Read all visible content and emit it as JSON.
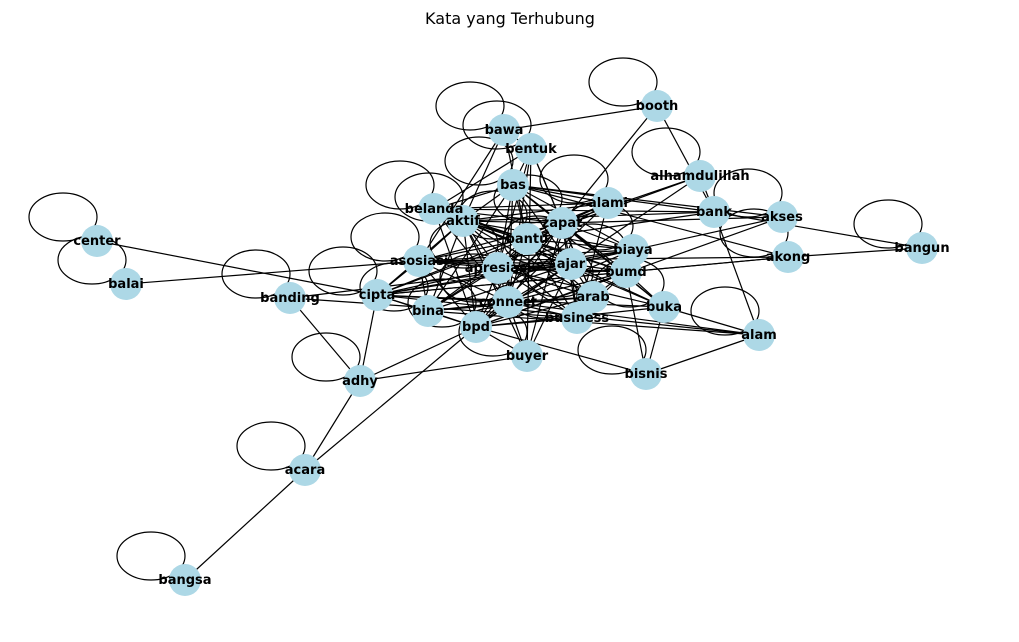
{
  "title": "Kata yang Terhubung",
  "colors": {
    "node": "#add8e6",
    "edge": "#000000",
    "background": "#ffffff",
    "text": "#000000"
  },
  "nodes": [
    "booth",
    "bawa",
    "bentuk",
    "alhamdulillah",
    "bas",
    "alami",
    "belanda",
    "aktif",
    "zapat",
    "bank",
    "akses",
    "bangun",
    "center",
    "balai",
    "bantu",
    "biaya",
    "asosiasi",
    "apresiasi",
    "ajar",
    "akong",
    "bumd",
    "banding",
    "cipta",
    "bina",
    "connect",
    "arab",
    "buka",
    "bpd",
    "business",
    "alam",
    "buyer",
    "bisnis",
    "adhy",
    "acara",
    "bangsa"
  ],
  "self_loops": [
    "booth",
    "bawa",
    "bentuk",
    "alhamdulillah",
    "bas",
    "alami",
    "belanda",
    "aktif",
    "zapat",
    "akses",
    "bangun",
    "center",
    "balai",
    "bantu",
    "biaya",
    "asosiasi",
    "apresiasi",
    "ajar",
    "akong",
    "bumd",
    "banding",
    "cipta",
    "bina",
    "connect",
    "arab",
    "buka",
    "bpd",
    "business",
    "alam",
    "buyer",
    "bisnis",
    "adhy",
    "acara",
    "bangsa"
  ],
  "edges": [
    [
      "bawa",
      "booth"
    ],
    [
      "booth",
      "bank"
    ],
    [
      "booth",
      "zapat"
    ],
    [
      "center",
      "cipta"
    ],
    [
      "balai",
      "asosiasi"
    ],
    [
      "bangun",
      "bank"
    ],
    [
      "bangun",
      "akong"
    ],
    [
      "acara",
      "adhy"
    ],
    [
      "acara",
      "bangsa"
    ],
    [
      "acara",
      "bpd"
    ],
    [
      "banding",
      "adhy"
    ],
    [
      "banding",
      "ajar"
    ],
    [
      "banding",
      "business"
    ],
    [
      "adhy",
      "cipta"
    ],
    [
      "adhy",
      "buyer"
    ],
    [
      "adhy",
      "bpd"
    ],
    [
      "bisnis",
      "alam"
    ],
    [
      "bisnis",
      "bpd"
    ],
    [
      "bisnis",
      "bumd"
    ],
    [
      "bisnis",
      "buka"
    ],
    [
      "alam",
      "bank"
    ],
    [
      "alam",
      "connect"
    ],
    [
      "alam",
      "cipta"
    ],
    [
      "alam",
      "buka"
    ],
    [
      "alam",
      "bina"
    ],
    [
      "akong",
      "cipta"
    ],
    [
      "akong",
      "asosiasi"
    ],
    [
      "akong",
      "bas"
    ],
    [
      "akong",
      "bumd"
    ],
    [
      "akses",
      "bas"
    ],
    [
      "akses",
      "bpd"
    ],
    [
      "akses",
      "biaya"
    ],
    [
      "akses",
      "zapat"
    ],
    [
      "alhamdulillah",
      "bpd"
    ],
    [
      "alhamdulillah",
      "zapat"
    ],
    [
      "alhamdulillah",
      "bantu"
    ],
    [
      "alhamdulillah",
      "bank"
    ],
    [
      "bank",
      "aktif"
    ],
    [
      "bank",
      "belanda"
    ],
    [
      "bank",
      "bantu"
    ],
    [
      "bank",
      "bas"
    ],
    [
      "buka",
      "aktif"
    ],
    [
      "buka",
      "bas"
    ],
    [
      "buka",
      "ajar"
    ],
    [
      "buka",
      "bpd"
    ],
    [
      "buka",
      "zapat"
    ],
    [
      "buyer",
      "bentuk"
    ],
    [
      "buyer",
      "aktif"
    ],
    [
      "buyer",
      "ajar"
    ],
    [
      "buyer",
      "zapat"
    ],
    [
      "bawa",
      "aktif"
    ],
    [
      "bawa",
      "asosiasi"
    ],
    [
      "bawa",
      "bentuk"
    ],
    [
      "bawa",
      "bantu"
    ],
    [
      "bentuk",
      "belanda"
    ],
    [
      "bentuk",
      "connect"
    ],
    [
      "bentuk",
      "bas"
    ],
    [
      "bentuk",
      "zapat"
    ],
    [
      "bentuk",
      "arab"
    ],
    [
      "bentuk",
      "apresiasi"
    ],
    [
      "bas",
      "belanda"
    ],
    [
      "bas",
      "aktif"
    ],
    [
      "bas",
      "zapat"
    ],
    [
      "bas",
      "bantu"
    ],
    [
      "bas",
      "ajar"
    ],
    [
      "bas",
      "bina"
    ],
    [
      "bas",
      "connect"
    ],
    [
      "bas",
      "apresiasi"
    ],
    [
      "bas",
      "alami"
    ],
    [
      "bas",
      "biaya"
    ],
    [
      "alami",
      "aktif"
    ],
    [
      "alami",
      "zapat"
    ],
    [
      "alami",
      "bantu"
    ],
    [
      "alami",
      "bpd"
    ],
    [
      "alami",
      "cipta"
    ],
    [
      "alami",
      "belanda"
    ],
    [
      "alami",
      "apresiasi"
    ],
    [
      "alami",
      "business"
    ],
    [
      "belanda",
      "aktif"
    ],
    [
      "belanda",
      "bpd"
    ],
    [
      "belanda",
      "bumd"
    ],
    [
      "belanda",
      "zapat"
    ],
    [
      "belanda",
      "ajar"
    ],
    [
      "belanda",
      "connect"
    ],
    [
      "belanda",
      "bantu"
    ],
    [
      "aktif",
      "zapat"
    ],
    [
      "aktif",
      "bantu"
    ],
    [
      "aktif",
      "asosiasi"
    ],
    [
      "aktif",
      "apresiasi"
    ],
    [
      "aktif",
      "ajar"
    ],
    [
      "aktif",
      "bumd"
    ],
    [
      "aktif",
      "bina"
    ],
    [
      "aktif",
      "connect"
    ],
    [
      "aktif",
      "bpd"
    ],
    [
      "aktif",
      "arab"
    ],
    [
      "aktif",
      "business"
    ],
    [
      "aktif",
      "biaya"
    ],
    [
      "aktif",
      "cipta"
    ],
    [
      "zapat",
      "bantu"
    ],
    [
      "zapat",
      "biaya"
    ],
    [
      "zapat",
      "ajar"
    ],
    [
      "zapat",
      "apresiasi"
    ],
    [
      "zapat",
      "bumd"
    ],
    [
      "zapat",
      "connect"
    ],
    [
      "zapat",
      "bpd"
    ],
    [
      "zapat",
      "arab"
    ],
    [
      "zapat",
      "business"
    ],
    [
      "zapat",
      "asosiasi"
    ],
    [
      "zapat",
      "bina"
    ],
    [
      "bantu",
      "asosiasi"
    ],
    [
      "bantu",
      "apresiasi"
    ],
    [
      "bantu",
      "ajar"
    ],
    [
      "bantu",
      "biaya"
    ],
    [
      "bantu",
      "bumd"
    ],
    [
      "bantu",
      "connect"
    ],
    [
      "bantu",
      "bpd"
    ],
    [
      "bantu",
      "arab"
    ],
    [
      "bantu",
      "business"
    ],
    [
      "bantu",
      "cipta"
    ],
    [
      "bantu",
      "bina"
    ],
    [
      "biaya",
      "ajar"
    ],
    [
      "biaya",
      "bumd"
    ],
    [
      "biaya",
      "connect"
    ],
    [
      "biaya",
      "apresiasi"
    ],
    [
      "biaya",
      "asosiasi"
    ],
    [
      "biaya",
      "cipta"
    ],
    [
      "asosiasi",
      "apresiasi"
    ],
    [
      "asosiasi",
      "cipta"
    ],
    [
      "asosiasi",
      "bina"
    ],
    [
      "asosiasi",
      "connect"
    ],
    [
      "asosiasi",
      "bpd"
    ],
    [
      "asosiasi",
      "ajar"
    ],
    [
      "asosiasi",
      "bumd"
    ],
    [
      "apresiasi",
      "ajar"
    ],
    [
      "apresiasi",
      "bumd"
    ],
    [
      "apresiasi",
      "cipta"
    ],
    [
      "apresiasi",
      "bina"
    ],
    [
      "apresiasi",
      "connect"
    ],
    [
      "apresiasi",
      "bpd"
    ],
    [
      "apresiasi",
      "arab"
    ],
    [
      "apresiasi",
      "business"
    ],
    [
      "apresiasi",
      "buka"
    ],
    [
      "ajar",
      "bumd"
    ],
    [
      "ajar",
      "connect"
    ],
    [
      "ajar",
      "bpd"
    ],
    [
      "ajar",
      "arab"
    ],
    [
      "ajar",
      "business"
    ],
    [
      "ajar",
      "bina"
    ],
    [
      "ajar",
      "cipta"
    ],
    [
      "bumd",
      "connect"
    ],
    [
      "bumd",
      "cipta"
    ],
    [
      "bumd",
      "bpd"
    ],
    [
      "bumd",
      "arab"
    ],
    [
      "bumd",
      "buka"
    ],
    [
      "bumd",
      "business"
    ],
    [
      "cipta",
      "bina"
    ],
    [
      "cipta",
      "connect"
    ],
    [
      "cipta",
      "bpd"
    ],
    [
      "cipta",
      "buka"
    ],
    [
      "bina",
      "connect"
    ],
    [
      "bina",
      "bpd"
    ],
    [
      "bina",
      "arab"
    ],
    [
      "connect",
      "bpd"
    ],
    [
      "connect",
      "arab"
    ],
    [
      "connect",
      "business"
    ],
    [
      "connect",
      "buyer"
    ],
    [
      "arab",
      "business"
    ],
    [
      "arab",
      "bpd"
    ],
    [
      "bpd",
      "business"
    ],
    [
      "bpd",
      "buyer"
    ]
  ]
}
